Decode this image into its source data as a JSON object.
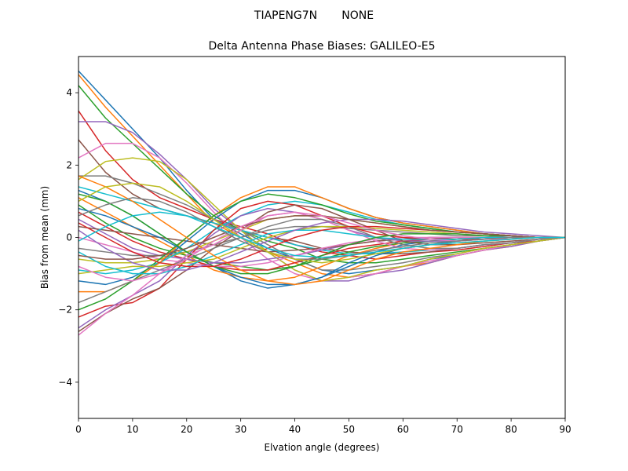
{
  "chart_data": {
    "type": "line",
    "suptitle": "TIAPENG7N       NONE",
    "title": "Delta Antenna Phase Biases: GALILEO-E5",
    "xlabel": "Elvation angle (degrees)",
    "ylabel": "Bias from mean (mm)",
    "xlim": [
      0,
      90
    ],
    "ylim": [
      -5,
      5
    ],
    "xticks": [
      0,
      10,
      20,
      30,
      40,
      50,
      60,
      70,
      80,
      90
    ],
    "yticks": [
      -4,
      -2,
      0,
      2,
      4
    ],
    "ytick_labels": [
      "−4",
      "−2",
      "0",
      "2",
      "4"
    ],
    "grid": false,
    "legend": "none",
    "x": [
      0,
      5,
      10,
      15,
      20,
      25,
      30,
      35,
      40,
      45,
      50,
      55,
      60,
      65,
      70,
      75,
      80,
      85,
      90
    ],
    "colors": [
      "#1f77b4",
      "#ff7f0e",
      "#2ca02c",
      "#d62728",
      "#9467bd",
      "#8c564b",
      "#e377c2",
      "#7f7f7f",
      "#bcbd22",
      "#17becf"
    ],
    "series": [
      {
        "values": [
          4.6,
          3.8,
          3.0,
          2.2,
          1.3,
          0.5,
          0.1,
          -0.3,
          -0.6,
          -0.9,
          -1.0,
          -0.9,
          -0.8,
          -0.6,
          -0.5,
          -0.35,
          -0.2,
          -0.1,
          0
        ]
      },
      {
        "values": [
          4.5,
          3.6,
          2.8,
          2.0,
          1.2,
          0.4,
          0.0,
          -0.4,
          -0.7,
          -1.0,
          -1.1,
          -1.0,
          -0.8,
          -0.7,
          -0.5,
          -0.35,
          -0.25,
          -0.1,
          0
        ]
      },
      {
        "values": [
          4.2,
          3.3,
          2.6,
          1.9,
          1.2,
          0.6,
          0.2,
          -0.1,
          -0.3,
          -0.6,
          -0.7,
          -0.7,
          -0.6,
          -0.5,
          -0.4,
          -0.3,
          -0.2,
          -0.1,
          0
        ]
      },
      {
        "values": [
          3.5,
          2.4,
          1.6,
          1.1,
          0.8,
          0.5,
          0.3,
          0.1,
          -0.2,
          -0.4,
          -0.5,
          -0.6,
          -0.5,
          -0.4,
          -0.35,
          -0.25,
          -0.15,
          -0.1,
          0
        ]
      },
      {
        "values": [
          3.2,
          3.2,
          2.9,
          2.3,
          1.6,
          0.8,
          0.2,
          -0.4,
          -0.9,
          -1.2,
          -1.2,
          -1.0,
          -0.9,
          -0.7,
          -0.5,
          -0.35,
          -0.25,
          -0.1,
          0
        ]
      },
      {
        "values": [
          2.7,
          1.8,
          1.2,
          0.8,
          0.6,
          0.4,
          0.2,
          0.0,
          -0.1,
          -0.3,
          -0.4,
          -0.45,
          -0.45,
          -0.4,
          -0.3,
          -0.2,
          -0.15,
          -0.05,
          0
        ]
      },
      {
        "values": [
          2.2,
          2.6,
          2.6,
          2.2,
          1.5,
          0.7,
          0.0,
          -0.6,
          -1.0,
          -1.2,
          -1.1,
          -1.0,
          -0.8,
          -0.65,
          -0.5,
          -0.35,
          -0.2,
          -0.1,
          0
        ]
      },
      {
        "values": [
          1.7,
          1.7,
          1.5,
          1.2,
          0.9,
          0.5,
          0.2,
          -0.2,
          -0.6,
          -0.9,
          -0.9,
          -0.8,
          -0.7,
          -0.55,
          -0.45,
          -0.3,
          -0.2,
          -0.1,
          0
        ]
      },
      {
        "values": [
          1.6,
          2.1,
          2.2,
          2.1,
          1.6,
          0.9,
          0.2,
          -0.4,
          -0.9,
          -1.2,
          -1.1,
          -0.9,
          -0.8,
          -0.6,
          -0.45,
          -0.3,
          -0.2,
          -0.1,
          0
        ]
      },
      {
        "values": [
          1.4,
          1.2,
          1.0,
          0.8,
          0.6,
          0.4,
          0.2,
          0.0,
          -0.2,
          -0.35,
          -0.45,
          -0.45,
          -0.4,
          -0.35,
          -0.3,
          -0.2,
          -0.15,
          -0.05,
          0
        ]
      },
      {
        "values": [
          1.3,
          1.0,
          0.6,
          0.1,
          -0.4,
          -0.8,
          -1.2,
          -1.4,
          -1.3,
          -1.1,
          -0.7,
          -0.4,
          -0.2,
          -0.1,
          -0.05,
          0.0,
          0.0,
          0.0,
          0
        ]
      },
      {
        "values": [
          1.1,
          0.7,
          0.3,
          -0.1,
          -0.5,
          -0.9,
          -1.1,
          -1.2,
          -1.1,
          -0.8,
          -0.5,
          -0.3,
          -0.15,
          -0.1,
          -0.05,
          0.0,
          0.0,
          0.0,
          0
        ]
      },
      {
        "values": [
          0.9,
          0.4,
          0.0,
          -0.3,
          -0.5,
          -0.7,
          -0.8,
          -0.9,
          -0.8,
          -0.6,
          -0.4,
          -0.25,
          -0.15,
          -0.1,
          -0.05,
          0.0,
          0.0,
          0.0,
          0
        ]
      },
      {
        "values": [
          0.7,
          0.3,
          -0.1,
          -0.4,
          -0.6,
          -0.8,
          -0.9,
          -0.9,
          -0.7,
          -0.5,
          -0.3,
          -0.2,
          -0.1,
          -0.05,
          0.0,
          0.0,
          0.0,
          0.0,
          0
        ]
      },
      {
        "values": [
          0.5,
          0.1,
          -0.3,
          -0.5,
          -0.6,
          -0.7,
          -0.7,
          -0.6,
          -0.5,
          -0.35,
          -0.2,
          -0.1,
          -0.05,
          0.0,
          0.0,
          0.0,
          0.0,
          0.0,
          0
        ]
      },
      {
        "values": [
          0.3,
          0.2,
          0.1,
          0.0,
          -0.1,
          -0.2,
          -0.3,
          -0.4,
          -0.35,
          -0.3,
          -0.2,
          -0.1,
          -0.05,
          0.0,
          0.0,
          0.0,
          0.0,
          0.0,
          0
        ]
      },
      {
        "values": [
          0.0,
          -0.2,
          -0.4,
          -0.6,
          -0.7,
          -0.8,
          -0.8,
          -0.7,
          -0.5,
          -0.3,
          -0.15,
          -0.05,
          0.0,
          0.0,
          0.0,
          0.0,
          0.0,
          0.0,
          0
        ]
      },
      {
        "values": [
          -0.3,
          -0.4,
          -0.5,
          -0.5,
          -0.4,
          -0.2,
          0.0,
          0.2,
          0.3,
          0.3,
          0.25,
          0.2,
          0.15,
          0.1,
          0.05,
          0.05,
          0.0,
          0.0,
          0
        ]
      },
      {
        "values": [
          -0.6,
          -0.7,
          -0.7,
          -0.6,
          -0.4,
          -0.1,
          0.2,
          0.5,
          0.6,
          0.6,
          0.5,
          0.4,
          0.3,
          0.2,
          0.15,
          0.1,
          0.05,
          0.0,
          0
        ]
      },
      {
        "values": [
          -0.9,
          -1.0,
          -0.9,
          -0.7,
          -0.3,
          0.2,
          0.6,
          0.9,
          1.0,
          0.9,
          0.7,
          0.5,
          0.35,
          0.25,
          0.15,
          0.1,
          0.05,
          0.0,
          0
        ]
      },
      {
        "values": [
          -1.2,
          -1.3,
          -1.1,
          -0.7,
          -0.1,
          0.5,
          1.0,
          1.3,
          1.3,
          1.1,
          0.8,
          0.55,
          0.4,
          0.3,
          0.2,
          0.1,
          0.05,
          0.0,
          0
        ]
      },
      {
        "values": [
          -1.5,
          -1.5,
          -1.2,
          -0.7,
          0.0,
          0.6,
          1.1,
          1.4,
          1.4,
          1.1,
          0.8,
          0.55,
          0.4,
          0.3,
          0.2,
          0.1,
          0.05,
          0.0,
          0
        ]
      },
      {
        "values": [
          -2.0,
          -1.7,
          -1.2,
          -0.6,
          0.0,
          0.6,
          1.0,
          1.2,
          1.1,
          0.9,
          0.65,
          0.45,
          0.35,
          0.25,
          0.15,
          0.1,
          0.05,
          0.0,
          0
        ]
      },
      {
        "values": [
          -2.2,
          -1.9,
          -1.8,
          -1.4,
          -0.6,
          0.2,
          0.8,
          1.0,
          0.9,
          0.6,
          0.3,
          0.1,
          0.0,
          -0.05,
          -0.05,
          -0.05,
          0.0,
          0.0,
          0
        ]
      },
      {
        "values": [
          -2.5,
          -2.0,
          -1.6,
          -1.2,
          -0.5,
          0.1,
          0.6,
          0.8,
          0.7,
          0.5,
          0.2,
          0.0,
          -0.1,
          -0.1,
          -0.1,
          -0.05,
          -0.05,
          0.0,
          0
        ]
      },
      {
        "values": [
          -2.6,
          -2.1,
          -1.7,
          -1.4,
          -0.9,
          -0.3,
          0.2,
          0.7,
          0.9,
          0.8,
          0.5,
          0.2,
          -0.1,
          -0.2,
          -0.2,
          -0.15,
          -0.1,
          -0.05,
          0
        ]
      },
      {
        "values": [
          -2.7,
          -2.1,
          -1.6,
          -1.0,
          -0.5,
          -0.2,
          0.2,
          0.6,
          0.7,
          0.5,
          0.2,
          -0.1,
          -0.3,
          -0.35,
          -0.3,
          -0.2,
          -0.15,
          -0.05,
          0
        ]
      },
      {
        "values": [
          -1.8,
          -1.5,
          -1.2,
          -0.9,
          -0.6,
          -0.3,
          0.0,
          0.3,
          0.5,
          0.5,
          0.3,
          0.0,
          -0.2,
          -0.3,
          -0.3,
          -0.2,
          -0.15,
          -0.05,
          0
        ]
      },
      {
        "values": [
          -1.0,
          -0.9,
          -0.8,
          -0.8,
          -0.7,
          -0.6,
          -0.3,
          0.0,
          0.2,
          0.3,
          0.3,
          0.25,
          0.2,
          0.15,
          0.1,
          0.05,
          0.05,
          0.0,
          0
        ]
      },
      {
        "values": [
          -0.4,
          -0.8,
          -1.0,
          -1.0,
          -0.8,
          -0.5,
          -0.2,
          0.1,
          0.2,
          0.2,
          0.1,
          0.0,
          -0.05,
          -0.05,
          -0.05,
          0.0,
          0.0,
          0.0,
          0
        ]
      },
      {
        "values": [
          0.8,
          0.6,
          0.3,
          0.0,
          -0.4,
          -0.8,
          -1.1,
          -1.3,
          -1.3,
          -1.1,
          -0.8,
          -0.5,
          -0.3,
          -0.2,
          -0.1,
          -0.05,
          0.0,
          0.0,
          0
        ]
      },
      {
        "values": [
          1.7,
          1.4,
          1.0,
          0.5,
          0.0,
          -0.5,
          -0.9,
          -1.2,
          -1.3,
          -1.2,
          -0.9,
          -0.6,
          -0.4,
          -0.3,
          -0.2,
          -0.1,
          -0.05,
          0.0,
          0
        ]
      },
      {
        "values": [
          1.2,
          1.0,
          0.6,
          0.1,
          -0.4,
          -0.8,
          -1.0,
          -1.0,
          -0.8,
          -0.5,
          -0.2,
          0.0,
          0.1,
          0.1,
          0.1,
          0.05,
          0.05,
          0.0,
          0
        ]
      },
      {
        "values": [
          0.4,
          0.0,
          -0.4,
          -0.7,
          -0.8,
          -0.8,
          -0.6,
          -0.3,
          0.0,
          0.2,
          0.3,
          0.3,
          0.25,
          0.2,
          0.15,
          0.1,
          0.05,
          0.0,
          0
        ]
      },
      {
        "values": [
          0.2,
          -0.3,
          -0.7,
          -0.9,
          -0.9,
          -0.7,
          -0.4,
          -0.1,
          0.2,
          0.4,
          0.5,
          0.5,
          0.45,
          0.35,
          0.25,
          0.15,
          0.1,
          0.05,
          0
        ]
      },
      {
        "values": [
          -0.5,
          -0.6,
          -0.6,
          -0.5,
          -0.3,
          0.0,
          0.3,
          0.5,
          0.6,
          0.6,
          0.5,
          0.4,
          0.3,
          0.2,
          0.15,
          0.1,
          0.05,
          0.0,
          0
        ]
      },
      {
        "values": [
          -0.8,
          -1.1,
          -1.2,
          -1.0,
          -0.6,
          -0.1,
          0.3,
          0.6,
          0.7,
          0.6,
          0.4,
          0.2,
          0.05,
          -0.05,
          -0.1,
          -0.05,
          -0.05,
          0.0,
          0
        ]
      },
      {
        "values": [
          0.6,
          0.9,
          1.1,
          1.0,
          0.7,
          0.3,
          -0.1,
          -0.4,
          -0.6,
          -0.6,
          -0.5,
          -0.35,
          -0.25,
          -0.15,
          -0.1,
          -0.05,
          0.0,
          0.0,
          0
        ]
      },
      {
        "values": [
          1.0,
          1.4,
          1.5,
          1.4,
          1.0,
          0.5,
          0.0,
          -0.4,
          -0.6,
          -0.7,
          -0.6,
          -0.45,
          -0.3,
          -0.2,
          -0.15,
          -0.1,
          -0.05,
          0.0,
          0
        ]
      },
      {
        "values": [
          -0.1,
          0.3,
          0.6,
          0.7,
          0.6,
          0.3,
          0.0,
          -0.3,
          -0.5,
          -0.55,
          -0.5,
          -0.4,
          -0.3,
          -0.2,
          -0.15,
          -0.1,
          -0.05,
          0.0,
          0
        ]
      }
    ]
  }
}
